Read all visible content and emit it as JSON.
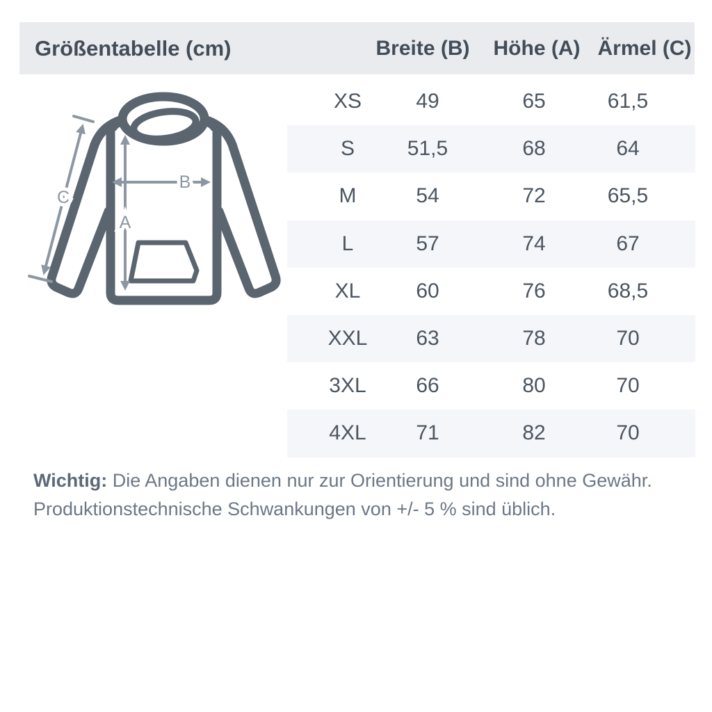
{
  "header": {
    "title": "Größentabelle (cm)",
    "columns": [
      "Breite (B)",
      "Höhe (A)",
      "Ärmel (C)"
    ]
  },
  "table": {
    "rows": [
      {
        "size": "XS",
        "breite": "49",
        "hoehe": "65",
        "aermel": "61,5"
      },
      {
        "size": "S",
        "breite": "51,5",
        "hoehe": "68",
        "aermel": "64"
      },
      {
        "size": "M",
        "breite": "54",
        "hoehe": "72",
        "aermel": "65,5"
      },
      {
        "size": "L",
        "breite": "57",
        "hoehe": "74",
        "aermel": "67"
      },
      {
        "size": "XL",
        "breite": "60",
        "hoehe": "76",
        "aermel": "68,5"
      },
      {
        "size": "XXL",
        "breite": "63",
        "hoehe": "78",
        "aermel": "70"
      },
      {
        "size": "3XL",
        "breite": "66",
        "hoehe": "80",
        "aermel": "70"
      },
      {
        "size": "4XL",
        "breite": "71",
        "hoehe": "82",
        "aermel": "70"
      }
    ]
  },
  "diagram": {
    "labels": {
      "a": "A",
      "b": "B",
      "c": "C"
    }
  },
  "note": {
    "bold": "Wichtig:",
    "line1": " Die Angaben dienen nur zur Orientierung und sind ohne Gewähr.",
    "line2": "Produktionstechnische Schwankungen von +/- 5 % sind üblich."
  },
  "colors": {
    "header_band": "#e9ebef",
    "row_band": "#f5f6f9",
    "heading_text": "#424d59",
    "table_text": "#4a5561",
    "note_text": "#6c7786",
    "hoodie_outline": "#5a6570",
    "dimension_arrows": "#8d97a3",
    "background": "#ffffff"
  }
}
